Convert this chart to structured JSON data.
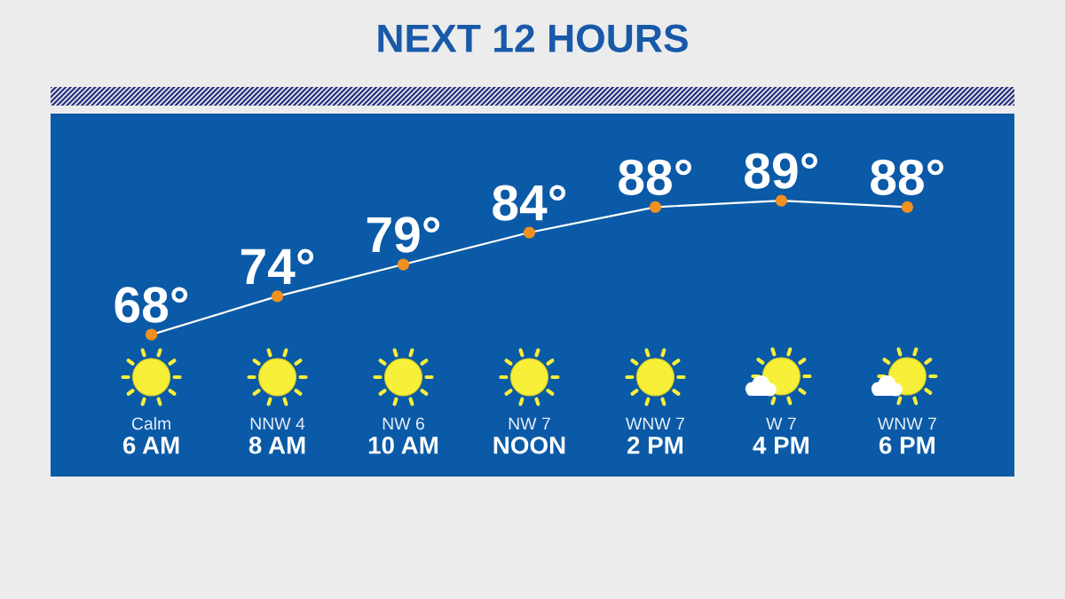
{
  "chart_data": {
    "type": "line",
    "title": "NEXT 12 HOURS",
    "categories": [
      "6 AM",
      "8 AM",
      "10 AM",
      "NOON",
      "2 PM",
      "4 PM",
      "6 PM"
    ],
    "values": [
      68,
      74,
      79,
      84,
      88,
      89,
      88
    ],
    "value_labels": [
      "68°",
      "74°",
      "79°",
      "84°",
      "88°",
      "89°",
      "88°"
    ],
    "color": "#ffffff",
    "colors": [
      "#f0901e",
      "#f0901e",
      "#f0901e",
      "#f0901e",
      "#f0901e",
      "#f0901e",
      "#f0901e"
    ],
    "marker": "circle",
    "line_style": "solid",
    "grid": false,
    "tick_labels": "x",
    "annotations": [
      "Calm",
      "NNW 4",
      "NW 6",
      "NW 7",
      "WNW 7",
      "W 7",
      "WNW 7"
    ]
  }
}
